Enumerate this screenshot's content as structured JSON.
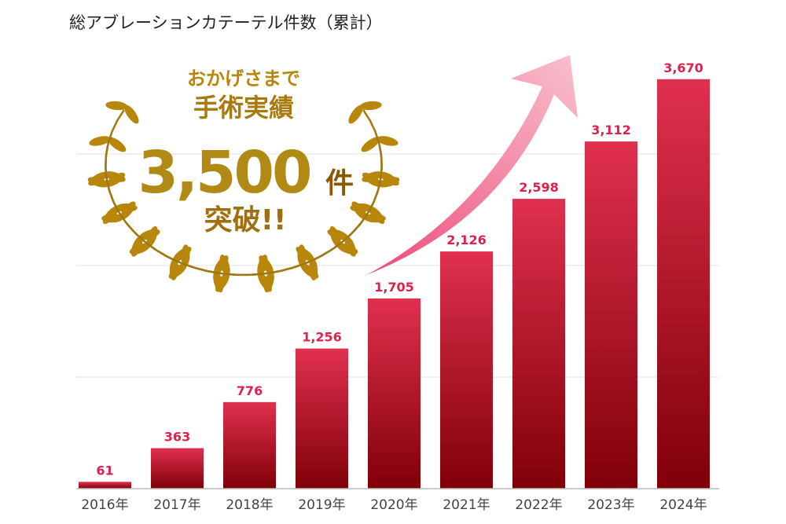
{
  "chart_data": {
    "type": "bar",
    "title": "総アブレーションカテーテル件数（累計）",
    "xlabel": "",
    "ylabel": "",
    "categories": [
      "2016年",
      "2017年",
      "2018年",
      "2019年",
      "2020年",
      "2021年",
      "2022年",
      "2023年",
      "2024年"
    ],
    "values": [
      61,
      363,
      776,
      1256,
      1705,
      2126,
      2598,
      3112,
      3670
    ],
    "data_labels": [
      "61",
      "363",
      "776",
      "1,256",
      "1,705",
      "2,126",
      "2,598",
      "3,112",
      "3,670"
    ],
    "ylim": [
      0,
      4000
    ],
    "gridlines": [
      1000,
      2000,
      3000
    ],
    "grid": true,
    "y_axis_labels_shown": false,
    "colors": {
      "bar_top": "#e0304f",
      "bar_bottom": "#800008",
      "data_label": "#e0204a",
      "arrow": "#f07090"
    }
  },
  "badge": {
    "line1": "おかげさまで",
    "line2": "手術実績",
    "number": "3,500",
    "unit": "件",
    "line4": "突破!!",
    "color": "#b8860b"
  }
}
